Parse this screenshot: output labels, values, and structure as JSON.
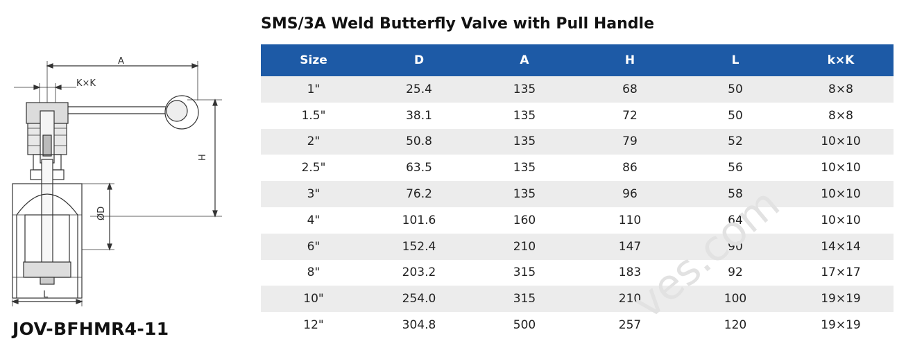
{
  "title": "SMS/3A Weld Butterfly Valve with Pull Handle",
  "model": "JOV-BFHMR4-11",
  "drawing": {
    "label_a": "A",
    "label_kk": "K×K",
    "label_h": "H",
    "label_d": "ØD",
    "label_l": "L"
  },
  "table": {
    "headers": [
      "Size",
      "D",
      "A",
      "H",
      "L",
      "k×K"
    ],
    "rows": [
      [
        "1\"",
        "25.4",
        "135",
        "68",
        "50",
        "8×8"
      ],
      [
        "1.5\"",
        "38.1",
        "135",
        "72",
        "50",
        "8×8"
      ],
      [
        "2\"",
        "50.8",
        "135",
        "79",
        "52",
        "10×10"
      ],
      [
        "2.5\"",
        "63.5",
        "135",
        "86",
        "56",
        "10×10"
      ],
      [
        "3\"",
        "76.2",
        "135",
        "96",
        "58",
        "10×10"
      ],
      [
        "4\"",
        "101.6",
        "160",
        "110",
        "64",
        "10×10"
      ],
      [
        "6\"",
        "152.4",
        "210",
        "147",
        "90",
        "14×14"
      ],
      [
        "8\"",
        "203.2",
        "315",
        "183",
        "92",
        "17×17"
      ],
      [
        "10\"",
        "254.0",
        "315",
        "210",
        "100",
        "19×19"
      ],
      [
        "12\"",
        "304.8",
        "500",
        "257",
        "120",
        "19×19"
      ]
    ]
  },
  "watermark": "ves.com"
}
